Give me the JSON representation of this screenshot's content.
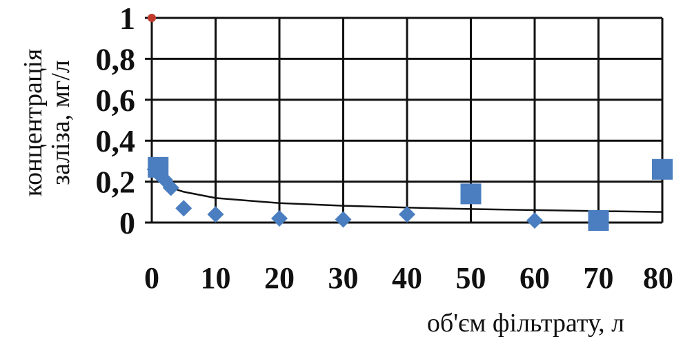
{
  "chart_data": {
    "type": "scatter",
    "xlabel": "об'єм фільтрату, л",
    "ylabel_line1": "концентрація",
    "ylabel_line2": "заліза, мг/л",
    "xlim": [
      0,
      80
    ],
    "ylim": [
      0,
      1
    ],
    "x_ticks": [
      "0",
      "10",
      "20",
      "30",
      "40",
      "50",
      "60",
      "70",
      "80"
    ],
    "y_ticks": [
      "0",
      "0,2",
      "0,4",
      "0,6",
      "0,8",
      "1"
    ],
    "grid": true,
    "legend": "none",
    "series": [
      {
        "marker": "diamond",
        "color": "#4a7ec0",
        "points": [
          [
            0.5,
            0.26
          ],
          [
            1,
            0.24
          ],
          [
            2,
            0.21
          ],
          [
            3,
            0.17
          ],
          [
            5,
            0.07
          ],
          [
            10,
            0.04
          ],
          [
            20,
            0.02
          ],
          [
            30,
            0.015
          ],
          [
            40,
            0.04
          ],
          [
            60,
            0.01
          ]
        ]
      },
      {
        "marker": "square",
        "color": "#4a7ec0",
        "points": [
          [
            1,
            0.27
          ],
          [
            50,
            0.14
          ],
          [
            70,
            0.01
          ],
          [
            80,
            0.26
          ]
        ]
      },
      {
        "marker": "circle",
        "color": "#c0392b",
        "points": [
          [
            0,
            1
          ]
        ]
      }
    ],
    "trendline": {
      "type": "power",
      "color": "#111111",
      "points": [
        [
          1,
          0.22
        ],
        [
          3,
          0.17
        ],
        [
          5,
          0.15
        ],
        [
          10,
          0.12
        ],
        [
          20,
          0.095
        ],
        [
          30,
          0.082
        ],
        [
          40,
          0.073
        ],
        [
          50,
          0.066
        ],
        [
          60,
          0.061
        ],
        [
          70,
          0.056
        ],
        [
          80,
          0.052
        ]
      ]
    }
  }
}
